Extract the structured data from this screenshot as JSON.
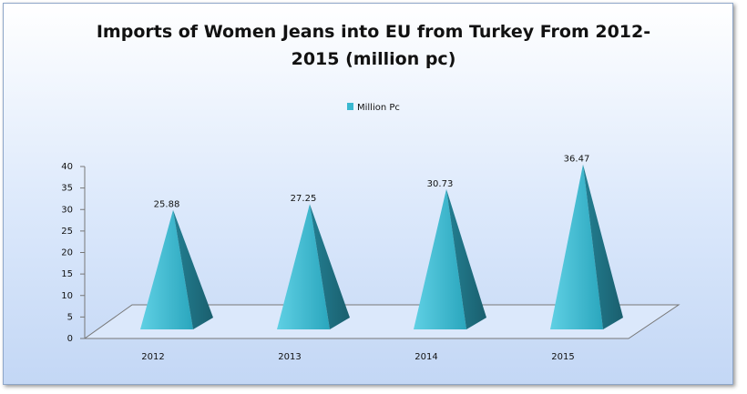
{
  "chart_data": {
    "type": "pyramid",
    "title": "Imports of Women Jeans into EU from Turkey From 2012-2015 (million pc)",
    "categories": [
      "2012",
      "2013",
      "2014",
      "2015"
    ],
    "series": [
      {
        "name": "Million Pc",
        "color": "#3ab8d0",
        "values": [
          25.88,
          27.25,
          30.73,
          36.47
        ]
      }
    ],
    "ylim": [
      0,
      40
    ],
    "yticks": [
      0,
      5,
      10,
      15,
      20,
      25,
      30,
      35,
      40
    ],
    "legend": "top",
    "grid": false
  }
}
